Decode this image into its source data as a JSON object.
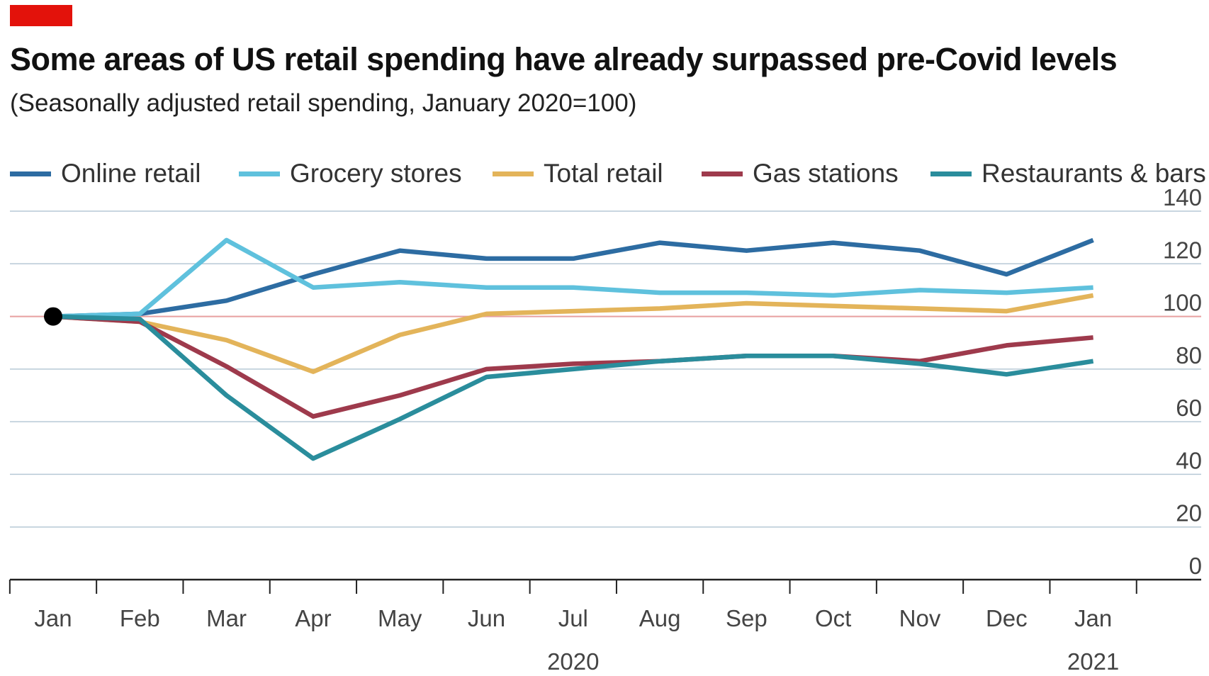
{
  "header": {
    "title": "Some areas of US retail spending have already surpassed pre-Covid levels",
    "subtitle": "(Seasonally adjusted retail spending, January 2020=100)",
    "accent_color": "#e3120b"
  },
  "chart_data": {
    "type": "line",
    "title": "Some areas of US retail spending have already surpassed pre-Covid levels",
    "subtitle": "(Seasonally adjusted retail spending, January 2020=100)",
    "xlabel": "",
    "ylabel": "",
    "categories": [
      "Jan",
      "Feb",
      "Mar",
      "Apr",
      "May",
      "Jun",
      "Jul",
      "Aug",
      "Sep",
      "Oct",
      "Nov",
      "Dec",
      "Jan"
    ],
    "year_labels": [
      {
        "label": "2020",
        "category_index": 6
      },
      {
        "label": "2021",
        "category_index": 12
      }
    ],
    "ylim": [
      0,
      140
    ],
    "yticks": [
      0,
      20,
      40,
      60,
      80,
      100,
      120,
      140
    ],
    "reference_line": {
      "value": 100,
      "color": "#e8a0a0"
    },
    "grid": true,
    "legend_position": "top",
    "start_marker": {
      "category_index": 0,
      "value": 100
    },
    "series": [
      {
        "name": "Online retail",
        "color": "#2d6ca2",
        "values": [
          100,
          101,
          106,
          116,
          125,
          122,
          122,
          128,
          125,
          128,
          125,
          116,
          129
        ]
      },
      {
        "name": "Grocery stores",
        "color": "#5fc1dd",
        "values": [
          100,
          101,
          129,
          111,
          113,
          111,
          111,
          109,
          109,
          108,
          110,
          109,
          111
        ]
      },
      {
        "name": "Total retail",
        "color": "#e3b45a",
        "values": [
          100,
          98,
          91,
          79,
          93,
          101,
          102,
          103,
          105,
          104,
          103,
          102,
          108
        ]
      },
      {
        "name": "Gas stations",
        "color": "#9e3a4c",
        "values": [
          100,
          98,
          81,
          62,
          70,
          80,
          82,
          83,
          85,
          85,
          83,
          89,
          92
        ]
      },
      {
        "name": "Restaurants & bars",
        "color": "#2a8d9c",
        "values": [
          100,
          99,
          70,
          46,
          61,
          77,
          80,
          83,
          85,
          85,
          82,
          78,
          83
        ]
      }
    ]
  }
}
